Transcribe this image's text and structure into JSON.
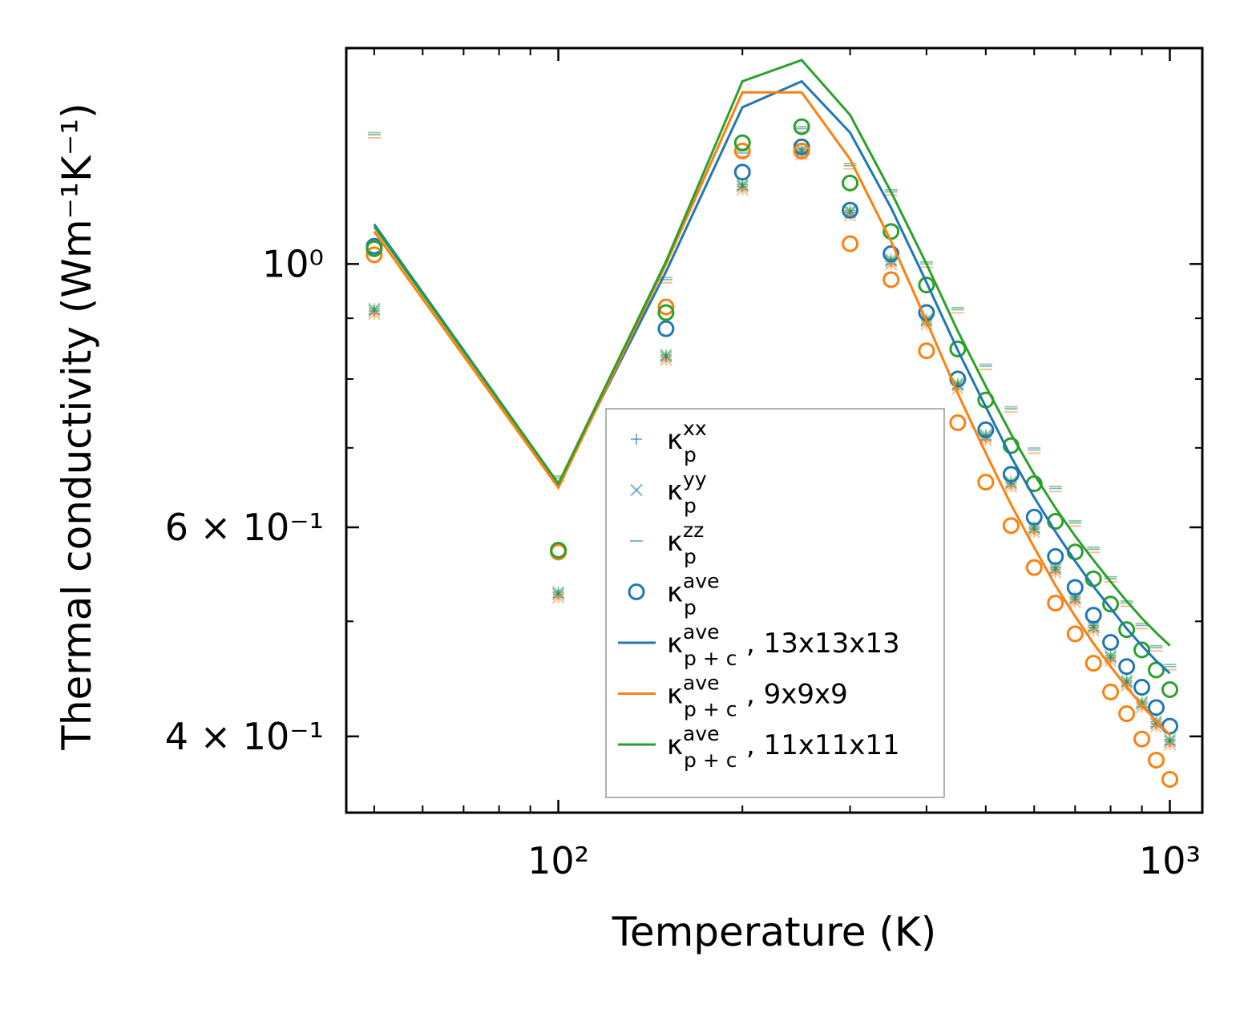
{
  "chart_data": {
    "type": "scatter",
    "title": "",
    "xlabel": "Temperature (K)",
    "ylabel": "Thermal conductivity (Wm⁻¹K⁻¹)",
    "xscale": "log",
    "yscale": "log",
    "xlim": [
      45,
      1130
    ],
    "ylim": [
      0.345,
      1.52
    ],
    "x_ticks": [
      {
        "value": 100,
        "label": "10²"
      },
      {
        "value": 1000,
        "label": "10³"
      }
    ],
    "y_ticks": [
      {
        "value": 1.0,
        "label": "10⁰"
      },
      {
        "value": 0.6,
        "label": "6 × 10⁻¹"
      },
      {
        "value": 0.4,
        "label": "4 × 10⁻¹"
      }
    ],
    "grid": false,
    "legend_position": "lower-center",
    "colors": {
      "blue": "#1f77b4",
      "orange": "#ff7f0e",
      "green": "#2ca02c"
    },
    "x": [
      50,
      100,
      150,
      200,
      250,
      300,
      350,
      400,
      450,
      500,
      550,
      600,
      650,
      700,
      750,
      800,
      850,
      900,
      950,
      1000
    ],
    "series": [
      {
        "name": "κ_p^ave 13x13x13",
        "marker": "circle",
        "color": "#1f77b4",
        "values": [
          1.035,
          0.572,
          0.882,
          1.195,
          1.255,
          1.11,
          1.02,
          0.91,
          0.8,
          0.725,
          0.665,
          0.612,
          0.567,
          0.534,
          0.506,
          0.48,
          0.458,
          0.44,
          0.423,
          0.408
        ]
      },
      {
        "name": "κ_p^ave 9x9x9",
        "marker": "circle",
        "color": "#ff7f0e",
        "values": [
          1.018,
          0.572,
          0.92,
          1.245,
          1.245,
          1.04,
          0.97,
          0.845,
          0.735,
          0.655,
          0.602,
          0.555,
          0.518,
          0.488,
          0.461,
          0.436,
          0.418,
          0.398,
          0.382,
          0.368
        ]
      },
      {
        "name": "κ_p^ave 11x11x11",
        "marker": "circle",
        "color": "#2ca02c",
        "values": [
          1.03,
          0.574,
          0.91,
          1.265,
          1.305,
          1.17,
          1.065,
          0.96,
          0.848,
          0.768,
          0.703,
          0.653,
          0.607,
          0.572,
          0.543,
          0.517,
          0.492,
          0.473,
          0.455,
          0.438
        ]
      }
    ],
    "component_series": [
      {
        "name": "κ_p^xx",
        "marker": "plus",
        "values": [
          0.913,
          0.527,
          0.835,
          1.162,
          1.244,
          1.105,
          1.005,
          0.895,
          0.79,
          0.715,
          0.653,
          0.598,
          0.553,
          0.522,
          0.494,
          0.466,
          0.444,
          0.426,
          0.41,
          0.396
        ]
      },
      {
        "name": "κ_p^yy",
        "marker": "x",
        "values": [
          0.913,
          0.527,
          0.835,
          1.162,
          1.244,
          1.105,
          1.005,
          0.895,
          0.79,
          0.715,
          0.653,
          0.598,
          0.553,
          0.522,
          0.494,
          0.466,
          0.444,
          0.426,
          0.41,
          0.396
        ]
      },
      {
        "name": "κ_p^zz",
        "marker": "hline",
        "values": [
          1.285,
          0.66,
          0.97,
          1.24,
          1.3,
          1.21,
          1.15,
          1.0,
          0.915,
          0.82,
          0.755,
          0.697,
          0.647,
          0.605,
          0.575,
          0.543,
          0.518,
          0.496,
          0.475,
          0.458
        ]
      }
    ],
    "lines": [
      {
        "name": "κ_p+c^ave, 13x13x13",
        "color": "#1f77b4",
        "values": [
          1.08,
          0.653,
          0.985,
          1.355,
          1.425,
          1.29,
          1.115,
          0.965,
          0.846,
          0.758,
          0.688,
          0.636,
          0.595,
          0.562,
          0.535,
          0.513,
          0.493,
          0.477,
          0.463,
          0.452
        ]
      },
      {
        "name": "κ_p+c^ave, 9x9x9",
        "color": "#ff7f0e",
        "values": [
          1.065,
          0.648,
          1.0,
          1.395,
          1.395,
          1.225,
          1.045,
          0.895,
          0.778,
          0.693,
          0.627,
          0.577,
          0.536,
          0.505,
          0.479,
          0.458,
          0.44,
          0.425,
          0.412,
          0.401
        ]
      },
      {
        "name": "κ_p+c^ave, 11x11x11",
        "color": "#2ca02c",
        "values": [
          1.075,
          0.653,
          1.005,
          1.425,
          1.485,
          1.335,
          1.15,
          1.0,
          0.878,
          0.789,
          0.719,
          0.665,
          0.623,
          0.59,
          0.563,
          0.54,
          0.52,
          0.503,
          0.489,
          0.477
        ]
      }
    ],
    "legend": [
      {
        "id": "kxx",
        "base": "κ",
        "sub": "p",
        "sup": "xx",
        "suffix": "",
        "marker": "plus",
        "color": "#1f77b4"
      },
      {
        "id": "kyy",
        "base": "κ",
        "sub": "p",
        "sup": "yy",
        "suffix": "",
        "marker": "x",
        "color": "#1f77b4"
      },
      {
        "id": "kzz",
        "base": "κ",
        "sub": "p",
        "sup": "zz",
        "suffix": "",
        "marker": "hline",
        "color": "#1f77b4"
      },
      {
        "id": "kave",
        "base": "κ",
        "sub": "p",
        "sup": "ave",
        "suffix": "",
        "marker": "circle",
        "color": "#1f77b4"
      },
      {
        "id": "k13",
        "base": "κ",
        "sub": "p + c",
        "sup": "ave",
        "suffix": ", 13x13x13",
        "marker": "line",
        "color": "#1f77b4"
      },
      {
        "id": "k9",
        "base": "κ",
        "sub": "p + c",
        "sup": "ave",
        "suffix": ", 9x9x9",
        "marker": "line",
        "color": "#ff7f0e"
      },
      {
        "id": "k11",
        "base": "κ",
        "sub": "p + c",
        "sup": "ave",
        "suffix": ", 11x11x11",
        "marker": "line",
        "color": "#2ca02c"
      }
    ]
  }
}
